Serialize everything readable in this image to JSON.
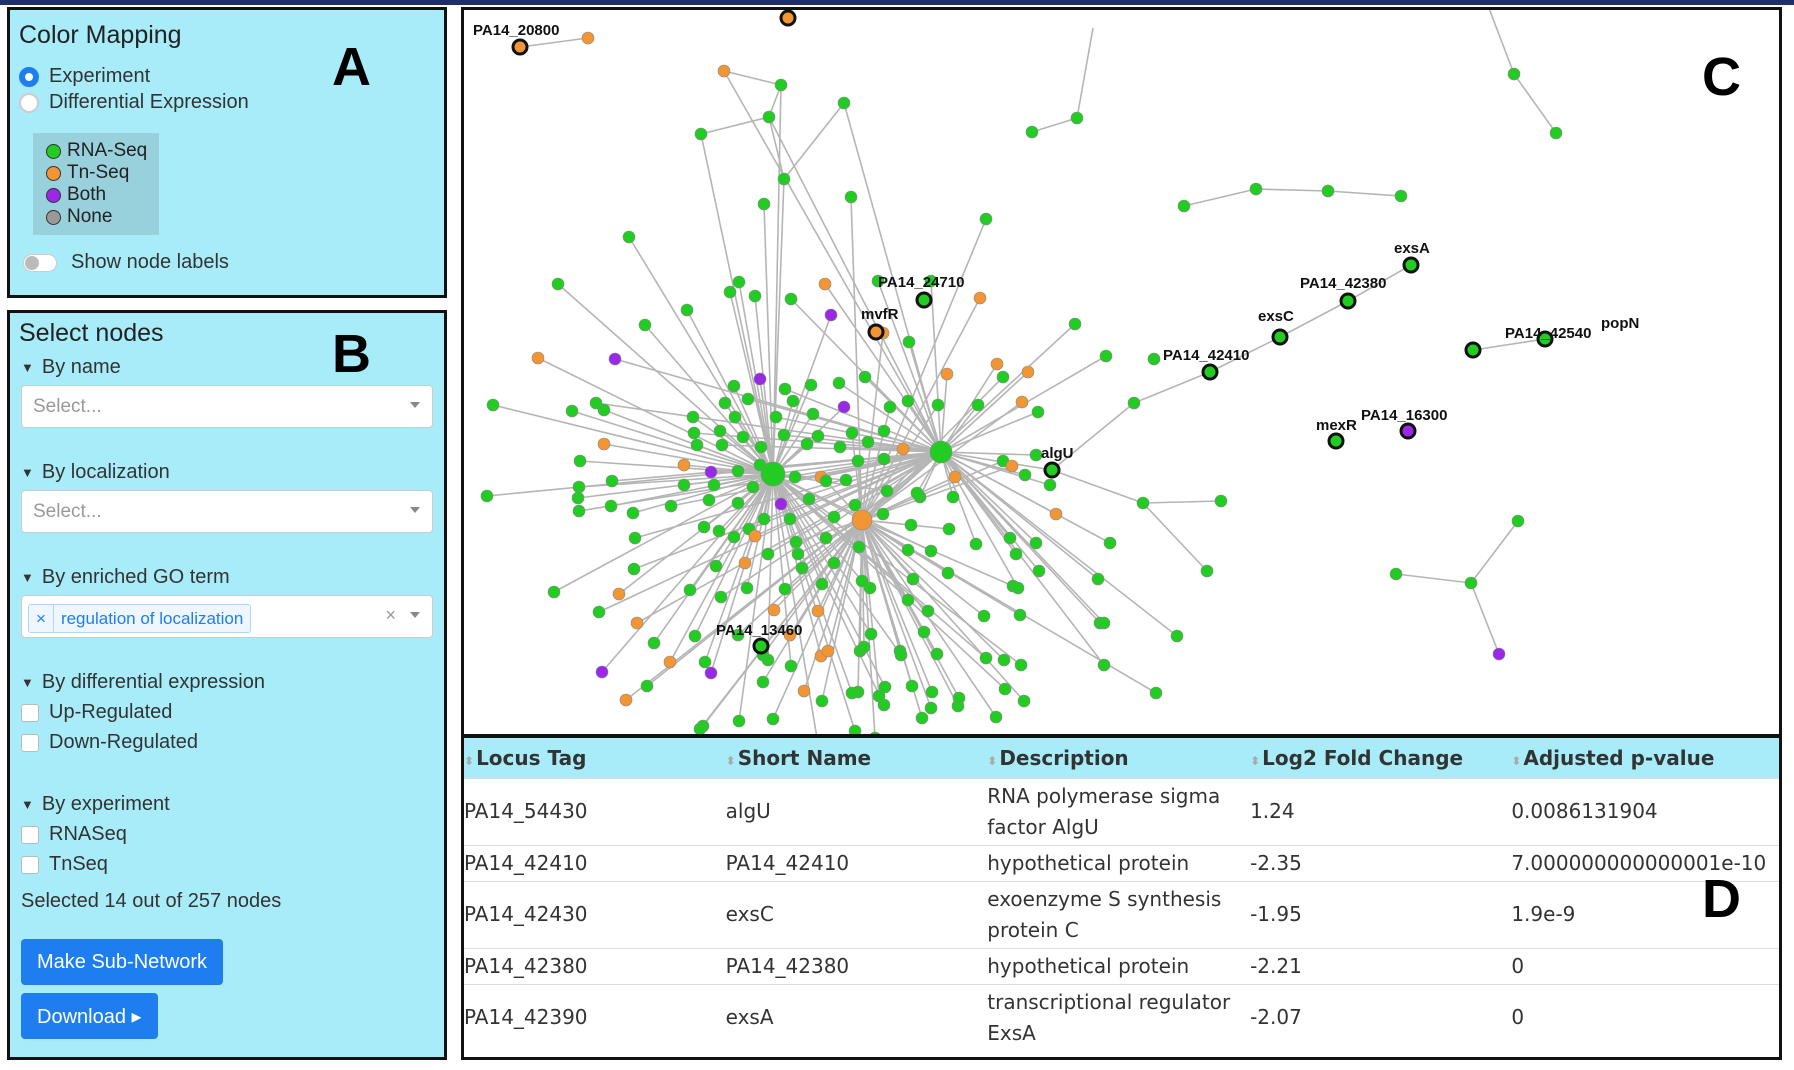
{
  "panel_a": {
    "letter": "A",
    "title": "Color Mapping",
    "radio_experiment": "Experiment",
    "radio_diffexp": "Differential Expression",
    "legend": [
      {
        "label": "RNA-Seq",
        "color": "#22cc22"
      },
      {
        "label": "Tn-Seq",
        "color": "#f29535"
      },
      {
        "label": "Both",
        "color": "#9929e6"
      },
      {
        "label": "None",
        "color": "#999999"
      }
    ],
    "show_labels": "Show node labels"
  },
  "panel_b": {
    "letter": "B",
    "title": "Select nodes",
    "by_name": "By name",
    "by_name_placeholder": "Select...",
    "by_localization": "By localization",
    "by_localization_placeholder": "Select...",
    "by_go": "By enriched GO term",
    "go_tag": "regulation of localization",
    "go_tag_remove": "×",
    "go_clear": "×",
    "by_diffexp": "By differential expression",
    "up": "Up-Regulated",
    "down": "Down-Regulated",
    "by_experiment": "By experiment",
    "rnaseq": "RNASeq",
    "tnseq": "TnSeq",
    "selected_info": "Selected 14 out of 257 nodes",
    "make_subnetwork": "Make Sub-Network",
    "download": "Download ▸"
  },
  "panel_c": {
    "letter": "C",
    "node_labels": [
      "PA14_20800",
      "PA14_24710",
      "mvfR",
      "exsA",
      "PA14_42380",
      "exsC",
      "PA14_42410",
      "PA14_42540",
      "popN",
      "mexR",
      "PA14_16300",
      "algU",
      "PA14_13460"
    ]
  },
  "panel_d": {
    "letter": "D",
    "columns": [
      "Locus Tag",
      "Short Name",
      "Description",
      "Log2 Fold Change",
      "Adjusted p-value"
    ],
    "rows": [
      [
        "PA14_54430",
        "algU",
        "RNA polymerase sigma factor AlgU",
        "1.24",
        "0.0086131904"
      ],
      [
        "PA14_42410",
        "PA14_42410",
        "hypothetical protein",
        "-2.35",
        "7.000000000000001e-10"
      ],
      [
        "PA14_42430",
        "exsC",
        "exoenzyme S synthesis protein C",
        "-1.95",
        "1.9e-9"
      ],
      [
        "PA14_42380",
        "PA14_42380",
        "hypothetical protein",
        "-2.21",
        "0"
      ],
      [
        "PA14_42390",
        "exsA",
        "transcriptional regulator ExsA",
        "-2.07",
        "0"
      ]
    ]
  }
}
